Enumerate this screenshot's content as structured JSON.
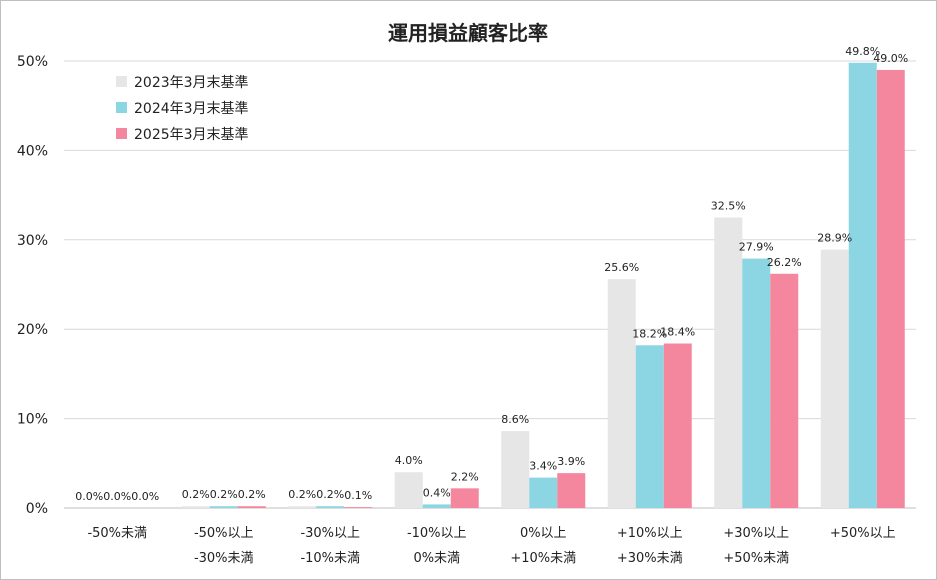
{
  "chart_data": {
    "type": "bar",
    "title": "運用損益顧客比率",
    "categories": [
      [
        "-50%未満"
      ],
      [
        "-50%以上",
        "-30%未満"
      ],
      [
        "-30%以上",
        "-10%未満"
      ],
      [
        "-10%以上",
        "0%未満"
      ],
      [
        "0%以上",
        "+10%未満"
      ],
      [
        "+10%以上",
        "+30%未満"
      ],
      [
        "+30%以上",
        "+50%未満"
      ],
      [
        "+50%以上"
      ]
    ],
    "series": [
      {
        "name": "2023年3月末基準",
        "color": "#e6e6e6",
        "values": [
          0.0,
          0.2,
          0.2,
          4.0,
          8.6,
          25.6,
          32.5,
          28.9
        ],
        "labels": [
          "0.0%",
          "0.2%",
          "0.2%",
          "4.0%",
          "8.6%",
          "25.6%",
          "32.5%",
          "28.9%"
        ]
      },
      {
        "name": "2024年3月末基準",
        "color": "#8cd6e3",
        "values": [
          0.0,
          0.2,
          0.2,
          0.4,
          3.4,
          18.2,
          27.9,
          49.8
        ],
        "labels": [
          "0.0%",
          "0.2%",
          "0.2%",
          "0.4%",
          "3.4%",
          "18.2%",
          "27.9%",
          "49.8%"
        ]
      },
      {
        "name": "2025年3月末基準",
        "color": "#f4879e",
        "values": [
          0.0,
          0.2,
          0.1,
          2.2,
          3.9,
          18.4,
          26.2,
          49.0
        ],
        "labels": [
          "0.0%",
          "0.2%",
          "0.1%",
          "2.2%",
          "3.9%",
          "18.4%",
          "26.2%",
          "49.0%"
        ]
      }
    ],
    "ylim": [
      0,
      50
    ],
    "yticks": [
      0,
      10,
      20,
      30,
      40,
      50
    ],
    "ytick_labels": [
      "0%",
      "10%",
      "20%",
      "30%",
      "40%",
      "50%"
    ],
    "grid": true,
    "legend_position": "top-left"
  }
}
